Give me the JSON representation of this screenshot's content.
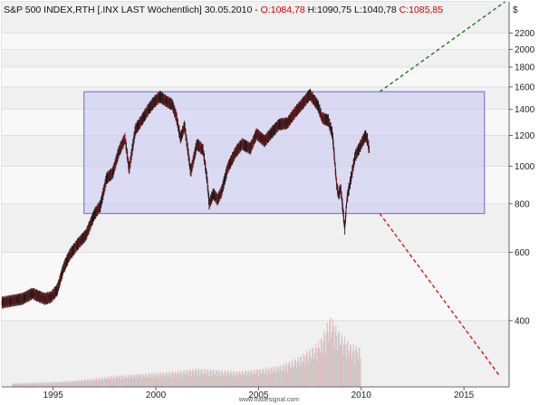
{
  "header": {
    "instrument": "S&P 500 INDEX,RTH [.INX LAST Wöchentlich] 30.05.2010 - ",
    "open": "O:1084,78",
    "high": " H:1090,75",
    "low": " L:1040,78",
    "close": " C:1085,85"
  },
  "footer": {
    "brand": "www.tradesignal.com"
  },
  "colors": {
    "price": "#000000",
    "price_up_tint": "#1a1a1a",
    "price_down_tint": "#8b1a1a",
    "range_box_fill": "#c8c8f0",
    "range_box_stroke": "#6a6ad0",
    "trend_up": "#1a7a1a",
    "trend_down": "#e01010",
    "volume_up": "#c8c8c8",
    "volume_down": "#e8b8b8",
    "grid": "#d0d0d0"
  },
  "chart_data": {
    "type": "line",
    "scale": "log",
    "title": "S&P 500 INDEX,RTH [.INX LAST Wöchentlich]",
    "currency_label": "$",
    "x_range": [
      1992.5,
      2017.2
    ],
    "ylim": [
      270,
      2650
    ],
    "y_ticks": [
      400,
      600,
      800,
      1000,
      1200,
      1400,
      1600,
      1800,
      2000,
      2200
    ],
    "x_ticks": [
      "1995",
      "2000",
      "2005",
      "2010",
      "2015"
    ],
    "x_tick_values": [
      1995,
      2000,
      2005,
      2010,
      2015
    ],
    "grid": "horizontal",
    "price_series": {
      "name": "",
      "points": [
        [
          1992.5,
          445
        ],
        [
          1993.0,
          450
        ],
        [
          1993.5,
          455
        ],
        [
          1994.0,
          470
        ],
        [
          1994.3,
          462
        ],
        [
          1994.6,
          455
        ],
        [
          1994.9,
          460
        ],
        [
          1995.2,
          480
        ],
        [
          1995.5,
          545
        ],
        [
          1995.8,
          590
        ],
        [
          1996.2,
          630
        ],
        [
          1996.6,
          665
        ],
        [
          1997.0,
          750
        ],
        [
          1997.3,
          790
        ],
        [
          1997.6,
          930
        ],
        [
          1997.9,
          960
        ],
        [
          1998.2,
          1090
        ],
        [
          1998.5,
          1180
        ],
        [
          1998.7,
          980
        ],
        [
          1999.0,
          1240
        ],
        [
          1999.3,
          1310
        ],
        [
          1999.6,
          1390
        ],
        [
          1999.9,
          1460
        ],
        [
          2000.2,
          1510
        ],
        [
          2000.5,
          1470
        ],
        [
          2000.8,
          1440
        ],
        [
          2001.0,
          1340
        ],
        [
          2001.2,
          1180
        ],
        [
          2001.4,
          1270
        ],
        [
          2001.7,
          965
        ],
        [
          2002.0,
          1140
        ],
        [
          2002.3,
          1100
        ],
        [
          2002.5,
          920
        ],
        [
          2002.6,
          800
        ],
        [
          2002.8,
          850
        ],
        [
          2003.0,
          820
        ],
        [
          2003.2,
          860
        ],
        [
          2003.5,
          990
        ],
        [
          2003.9,
          1090
        ],
        [
          2004.2,
          1140
        ],
        [
          2004.6,
          1110
        ],
        [
          2004.9,
          1210
        ],
        [
          2005.3,
          1160
        ],
        [
          2005.7,
          1230
        ],
        [
          2006.0,
          1280
        ],
        [
          2006.4,
          1290
        ],
        [
          2006.8,
          1380
        ],
        [
          2007.2,
          1460
        ],
        [
          2007.5,
          1530
        ],
        [
          2007.7,
          1480
        ],
        [
          2007.9,
          1430
        ],
        [
          2008.1,
          1330
        ],
        [
          2008.4,
          1310
        ],
        [
          2008.6,
          1210
        ],
        [
          2008.8,
          900
        ],
        [
          2008.9,
          840
        ],
        [
          2009.0,
          880
        ],
        [
          2009.2,
          690
        ],
        [
          2009.3,
          820
        ],
        [
          2009.5,
          930
        ],
        [
          2009.7,
          1060
        ],
        [
          2009.9,
          1110
        ],
        [
          2010.0,
          1140
        ],
        [
          2010.2,
          1200
        ],
        [
          2010.3,
          1170
        ],
        [
          2010.4,
          1090
        ]
      ]
    },
    "range_box": {
      "x_start": 1996.5,
      "x_end": 2016.0,
      "y_low": 755,
      "y_high": 1555
    },
    "trend_lines": [
      {
        "name": "",
        "x": [
          2010.9,
          2017.0
        ],
        "y": [
          1555,
          2650
        ],
        "color": "#1a7a1a",
        "dash": true
      },
      {
        "name": "",
        "x": [
          2010.9,
          2016.7
        ],
        "y": [
          755,
          290
        ],
        "color": "#e01010",
        "dash": true
      }
    ],
    "volume_series": {
      "name": "",
      "x": [
        1993,
        1994,
        1995,
        1996,
        1997,
        1998,
        1999,
        2000,
        2001,
        2002,
        2003,
        2004,
        2005,
        2006,
        2007,
        2008,
        2008.5,
        2009,
        2009.5,
        2010
      ],
      "values": [
        0.05,
        0.06,
        0.07,
        0.09,
        0.12,
        0.16,
        0.18,
        0.2,
        0.22,
        0.26,
        0.24,
        0.22,
        0.25,
        0.3,
        0.42,
        0.65,
        1.0,
        0.75,
        0.6,
        0.55
      ]
    }
  }
}
